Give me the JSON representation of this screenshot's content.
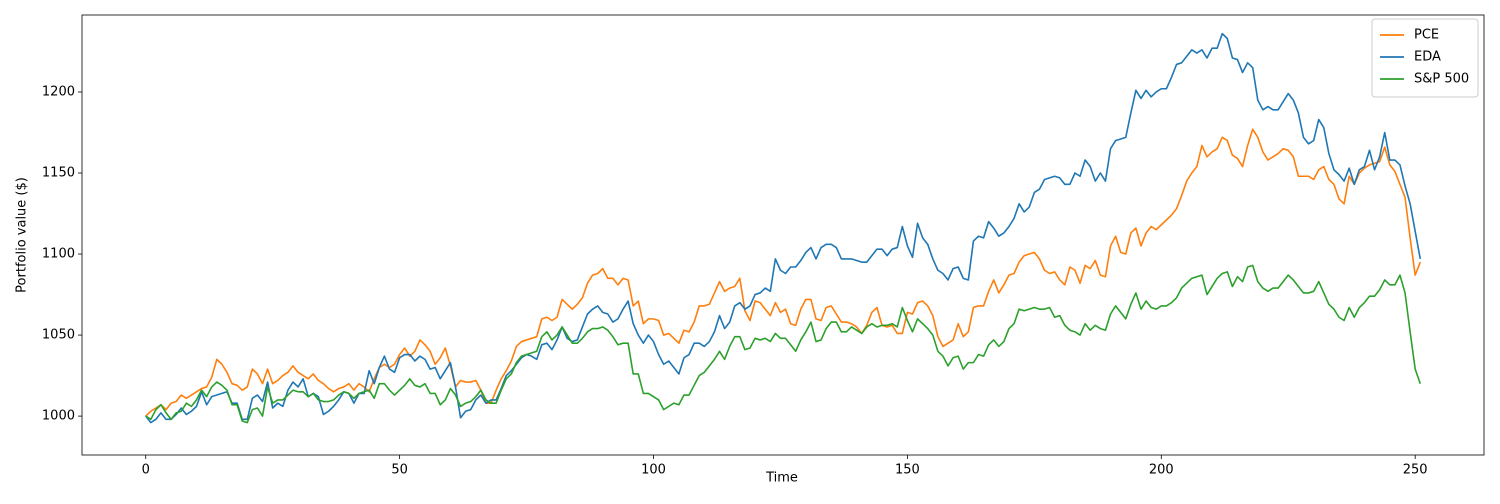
{
  "chart_data": {
    "type": "line",
    "xlabel": "Time",
    "ylabel": "Portfolio value ($)",
    "x": [
      0,
      1,
      2,
      3,
      4,
      5,
      6,
      7,
      8,
      9,
      10,
      11,
      12,
      13,
      14,
      15,
      16,
      17,
      18,
      19,
      20,
      21,
      22,
      23,
      24,
      25,
      26,
      27,
      28,
      29,
      30,
      31,
      32,
      33,
      34,
      35,
      36,
      37,
      38,
      39,
      40,
      41,
      42,
      43,
      44,
      45,
      46,
      47,
      48,
      49,
      50,
      51,
      52,
      53,
      54,
      55,
      56,
      57,
      58,
      59,
      60,
      61,
      62,
      63,
      64,
      65,
      66,
      67,
      68,
      69,
      70,
      71,
      72,
      73,
      74,
      75,
      76,
      77,
      78,
      79,
      80,
      81,
      82,
      83,
      84,
      85,
      86,
      87,
      88,
      89,
      90,
      91,
      92,
      93,
      94,
      95,
      96,
      97,
      98,
      99,
      100,
      101,
      102,
      103,
      104,
      105,
      106,
      107,
      108,
      109,
      110,
      111,
      112,
      113,
      114,
      115,
      116,
      117,
      118,
      119,
      120,
      121,
      122,
      123,
      124,
      125,
      126,
      127,
      128,
      129,
      130,
      131,
      132,
      133,
      134,
      135,
      136,
      137,
      138,
      139,
      140,
      141,
      142,
      143,
      144,
      145,
      146,
      147,
      148,
      149,
      150,
      151,
      152,
      153,
      154,
      155,
      156,
      157,
      158,
      159,
      160,
      161,
      162,
      163,
      164,
      165,
      166,
      167,
      168,
      169,
      170,
      171,
      172,
      173,
      174,
      175,
      176,
      177,
      178,
      179,
      180,
      181,
      182,
      183,
      184,
      185,
      186,
      187,
      188,
      189,
      190,
      191,
      192,
      193,
      194,
      195,
      196,
      197,
      198,
      199,
      200,
      201,
      202,
      203,
      204,
      205,
      206,
      207,
      208,
      209,
      210,
      211,
      212,
      213,
      214,
      215,
      216,
      217,
      218,
      219,
      220,
      221,
      222,
      223,
      224,
      225,
      226,
      227,
      228,
      229,
      230,
      231,
      232,
      233,
      234,
      235,
      236,
      237,
      238,
      239,
      240,
      241,
      242,
      243,
      244,
      245,
      246,
      247,
      248,
      249,
      250,
      251
    ],
    "series": [
      {
        "name": "PCE",
        "color": "#ff7f0e",
        "values": [
          1000,
          1003,
          1005,
          1007,
          1004,
          1008,
          1009,
          1013,
          1011,
          1013,
          1015,
          1017,
          1018,
          1024,
          1035,
          1032,
          1027,
          1020,
          1019,
          1016,
          1018,
          1029,
          1026,
          1020,
          1029,
          1020,
          1022,
          1025,
          1027,
          1031,
          1027,
          1025,
          1023,
          1026,
          1022,
          1020,
          1017,
          1015,
          1017,
          1018,
          1020,
          1016,
          1020,
          1018,
          1015,
          1023,
          1030,
          1032,
          1030,
          1032,
          1038,
          1042,
          1037,
          1040,
          1047,
          1044,
          1040,
          1032,
          1036,
          1042,
          1031,
          1018,
          1022,
          1021,
          1021,
          1022,
          1016,
          1008,
          1008,
          1016,
          1023,
          1028,
          1034,
          1043,
          1046,
          1047,
          1048,
          1049,
          1060,
          1061,
          1059,
          1061,
          1072,
          1069,
          1066,
          1069,
          1073,
          1082,
          1087,
          1088,
          1091,
          1085,
          1085,
          1081,
          1085,
          1084,
          1068,
          1071,
          1057,
          1060,
          1060,
          1059,
          1050,
          1051,
          1048,
          1045,
          1053,
          1052,
          1058,
          1068,
          1068,
          1069,
          1076,
          1083,
          1077,
          1079,
          1080,
          1085,
          1065,
          1059,
          1071,
          1070,
          1066,
          1062,
          1070,
          1064,
          1066,
          1057,
          1056,
          1066,
          1072,
          1072,
          1060,
          1059,
          1067,
          1068,
          1063,
          1058,
          1058,
          1057,
          1055,
          1051,
          1056,
          1064,
          1067,
          1056,
          1055,
          1056,
          1051,
          1051,
          1064,
          1063,
          1070,
          1071,
          1068,
          1062,
          1049,
          1043,
          1045,
          1047,
          1057,
          1049,
          1052,
          1067,
          1068,
          1068,
          1077,
          1084,
          1076,
          1081,
          1087,
          1088,
          1095,
          1099,
          1100,
          1101,
          1097,
          1090,
          1088,
          1089,
          1084,
          1081,
          1092,
          1090,
          1082,
          1093,
          1091,
          1096,
          1087,
          1086,
          1105,
          1111,
          1101,
          1100,
          1113,
          1116,
          1105,
          1113,
          1117,
          1115,
          1118,
          1121,
          1124,
          1128,
          1136,
          1145,
          1150,
          1154,
          1167,
          1160,
          1163,
          1165,
          1172,
          1170,
          1161,
          1159,
          1154,
          1167,
          1177,
          1172,
          1163,
          1158,
          1160,
          1162,
          1165,
          1164,
          1160,
          1148,
          1148,
          1148,
          1146,
          1152,
          1154,
          1146,
          1143,
          1134,
          1131,
          1148,
          1143,
          1150,
          1153,
          1155,
          1156,
          1157,
          1166,
          1155,
          1151,
          1143,
          1135,
          1110,
          1087,
          1095
        ]
      },
      {
        "name": "EDA",
        "color": "#1f77b4",
        "values": [
          1000,
          996,
          998,
          1002,
          998,
          998,
          1001,
          1005,
          1001,
          1003,
          1006,
          1015,
          1007,
          1012,
          1013,
          1014,
          1015,
          1008,
          1008,
          998,
          998,
          1011,
          1013,
          1009,
          1021,
          1005,
          1008,
          1006,
          1016,
          1021,
          1018,
          1023,
          1012,
          1014,
          1012,
          1001,
          1003,
          1006,
          1010,
          1015,
          1014,
          1008,
          1014,
          1014,
          1028,
          1020,
          1030,
          1037,
          1029,
          1027,
          1036,
          1038,
          1038,
          1034,
          1037,
          1035,
          1029,
          1030,
          1023,
          1028,
          1033,
          1018,
          999,
          1003,
          1004,
          1010,
          1013,
          1008,
          1010,
          1010,
          1017,
          1025,
          1028,
          1032,
          1036,
          1038,
          1037,
          1035,
          1044,
          1045,
          1041,
          1047,
          1055,
          1048,
          1046,
          1047,
          1055,
          1063,
          1066,
          1068,
          1064,
          1063,
          1058,
          1060,
          1066,
          1071,
          1057,
          1050,
          1045,
          1050,
          1046,
          1038,
          1032,
          1034,
          1030,
          1026,
          1036,
          1038,
          1045,
          1045,
          1043,
          1046,
          1052,
          1062,
          1054,
          1058,
          1068,
          1070,
          1066,
          1068,
          1075,
          1076,
          1079,
          1077,
          1097,
          1090,
          1088,
          1092,
          1092,
          1096,
          1101,
          1104,
          1097,
          1104,
          1106,
          1106,
          1104,
          1097,
          1097,
          1097,
          1096,
          1095,
          1095,
          1099,
          1103,
          1103,
          1099,
          1103,
          1104,
          1117,
          1105,
          1098,
          1119,
          1110,
          1106,
          1097,
          1090,
          1088,
          1084,
          1091,
          1092,
          1085,
          1084,
          1108,
          1111,
          1110,
          1120,
          1116,
          1111,
          1113,
          1117,
          1122,
          1131,
          1126,
          1129,
          1138,
          1140,
          1146,
          1147,
          1148,
          1147,
          1143,
          1143,
          1150,
          1148,
          1158,
          1154,
          1145,
          1150,
          1145,
          1165,
          1170,
          1171,
          1172,
          1187,
          1201,
          1196,
          1201,
          1197,
          1200,
          1202,
          1202,
          1209,
          1217,
          1218,
          1222,
          1226,
          1224,
          1226,
          1221,
          1227,
          1227,
          1236,
          1233,
          1221,
          1220,
          1212,
          1218,
          1215,
          1195,
          1189,
          1191,
          1189,
          1189,
          1194,
          1199,
          1195,
          1187,
          1172,
          1168,
          1170,
          1183,
          1178,
          1162,
          1152,
          1149,
          1145,
          1153,
          1143,
          1152,
          1154,
          1164,
          1152,
          1160,
          1175,
          1158,
          1158,
          1155,
          1142,
          1131,
          1114,
          1097
        ]
      },
      {
        "name": "S&P 500",
        "color": "#2ca02c",
        "values": [
          1000,
          998,
          1004,
          1007,
          1002,
          998,
          1002,
          1003,
          1008,
          1006,
          1010,
          1016,
          1012,
          1018,
          1021,
          1019,
          1016,
          1007,
          1007,
          997,
          996,
          1004,
          1005,
          1000,
          1018,
          1008,
          1010,
          1010,
          1013,
          1016,
          1015,
          1015,
          1012,
          1014,
          1010,
          1009,
          1009,
          1010,
          1013,
          1015,
          1014,
          1011,
          1014,
          1015,
          1016,
          1011,
          1020,
          1020,
          1016,
          1013,
          1016,
          1019,
          1023,
          1019,
          1018,
          1020,
          1014,
          1014,
          1007,
          1010,
          1017,
          1013,
          1006,
          1008,
          1009,
          1012,
          1016,
          1010,
          1008,
          1008,
          1016,
          1023,
          1026,
          1033,
          1037,
          1038,
          1039,
          1040,
          1049,
          1052,
          1047,
          1050,
          1055,
          1050,
          1045,
          1045,
          1048,
          1052,
          1054,
          1054,
          1055,
          1053,
          1049,
          1044,
          1045,
          1045,
          1026,
          1026,
          1014,
          1014,
          1012,
          1010,
          1004,
          1006,
          1008,
          1007,
          1013,
          1013,
          1019,
          1025,
          1027,
          1031,
          1035,
          1040,
          1035,
          1043,
          1049,
          1049,
          1041,
          1042,
          1048,
          1047,
          1048,
          1046,
          1051,
          1048,
          1048,
          1044,
          1040,
          1047,
          1052,
          1058,
          1046,
          1047,
          1054,
          1058,
          1058,
          1052,
          1052,
          1055,
          1053,
          1051,
          1055,
          1057,
          1055,
          1056,
          1056,
          1057,
          1055,
          1067,
          1059,
          1052,
          1060,
          1057,
          1054,
          1050,
          1040,
          1037,
          1031,
          1036,
          1037,
          1029,
          1033,
          1033,
          1038,
          1037,
          1044,
          1047,
          1043,
          1046,
          1054,
          1057,
          1066,
          1065,
          1066,
          1067,
          1066,
          1066,
          1067,
          1061,
          1062,
          1056,
          1053,
          1052,
          1050,
          1057,
          1053,
          1056,
          1054,
          1053,
          1063,
          1068,
          1064,
          1060,
          1069,
          1076,
          1066,
          1071,
          1067,
          1066,
          1068,
          1068,
          1070,
          1073,
          1079,
          1082,
          1085,
          1086,
          1087,
          1075,
          1080,
          1085,
          1088,
          1089,
          1080,
          1086,
          1083,
          1092,
          1093,
          1083,
          1079,
          1077,
          1079,
          1079,
          1083,
          1087,
          1084,
          1080,
          1076,
          1076,
          1077,
          1083,
          1076,
          1069,
          1066,
          1061,
          1059,
          1067,
          1061,
          1067,
          1070,
          1074,
          1074,
          1078,
          1084,
          1081,
          1081,
          1087,
          1076,
          1052,
          1029,
          1020
        ]
      }
    ],
    "xlim": [
      -12.55,
      263.55
    ],
    "ylim": [
      976,
      1247.5
    ],
    "xticks": [
      0,
      50,
      100,
      150,
      200,
      250
    ],
    "yticks": [
      1000,
      1050,
      1100,
      1150,
      1200
    ],
    "grid": false,
    "legend": "upper right"
  }
}
